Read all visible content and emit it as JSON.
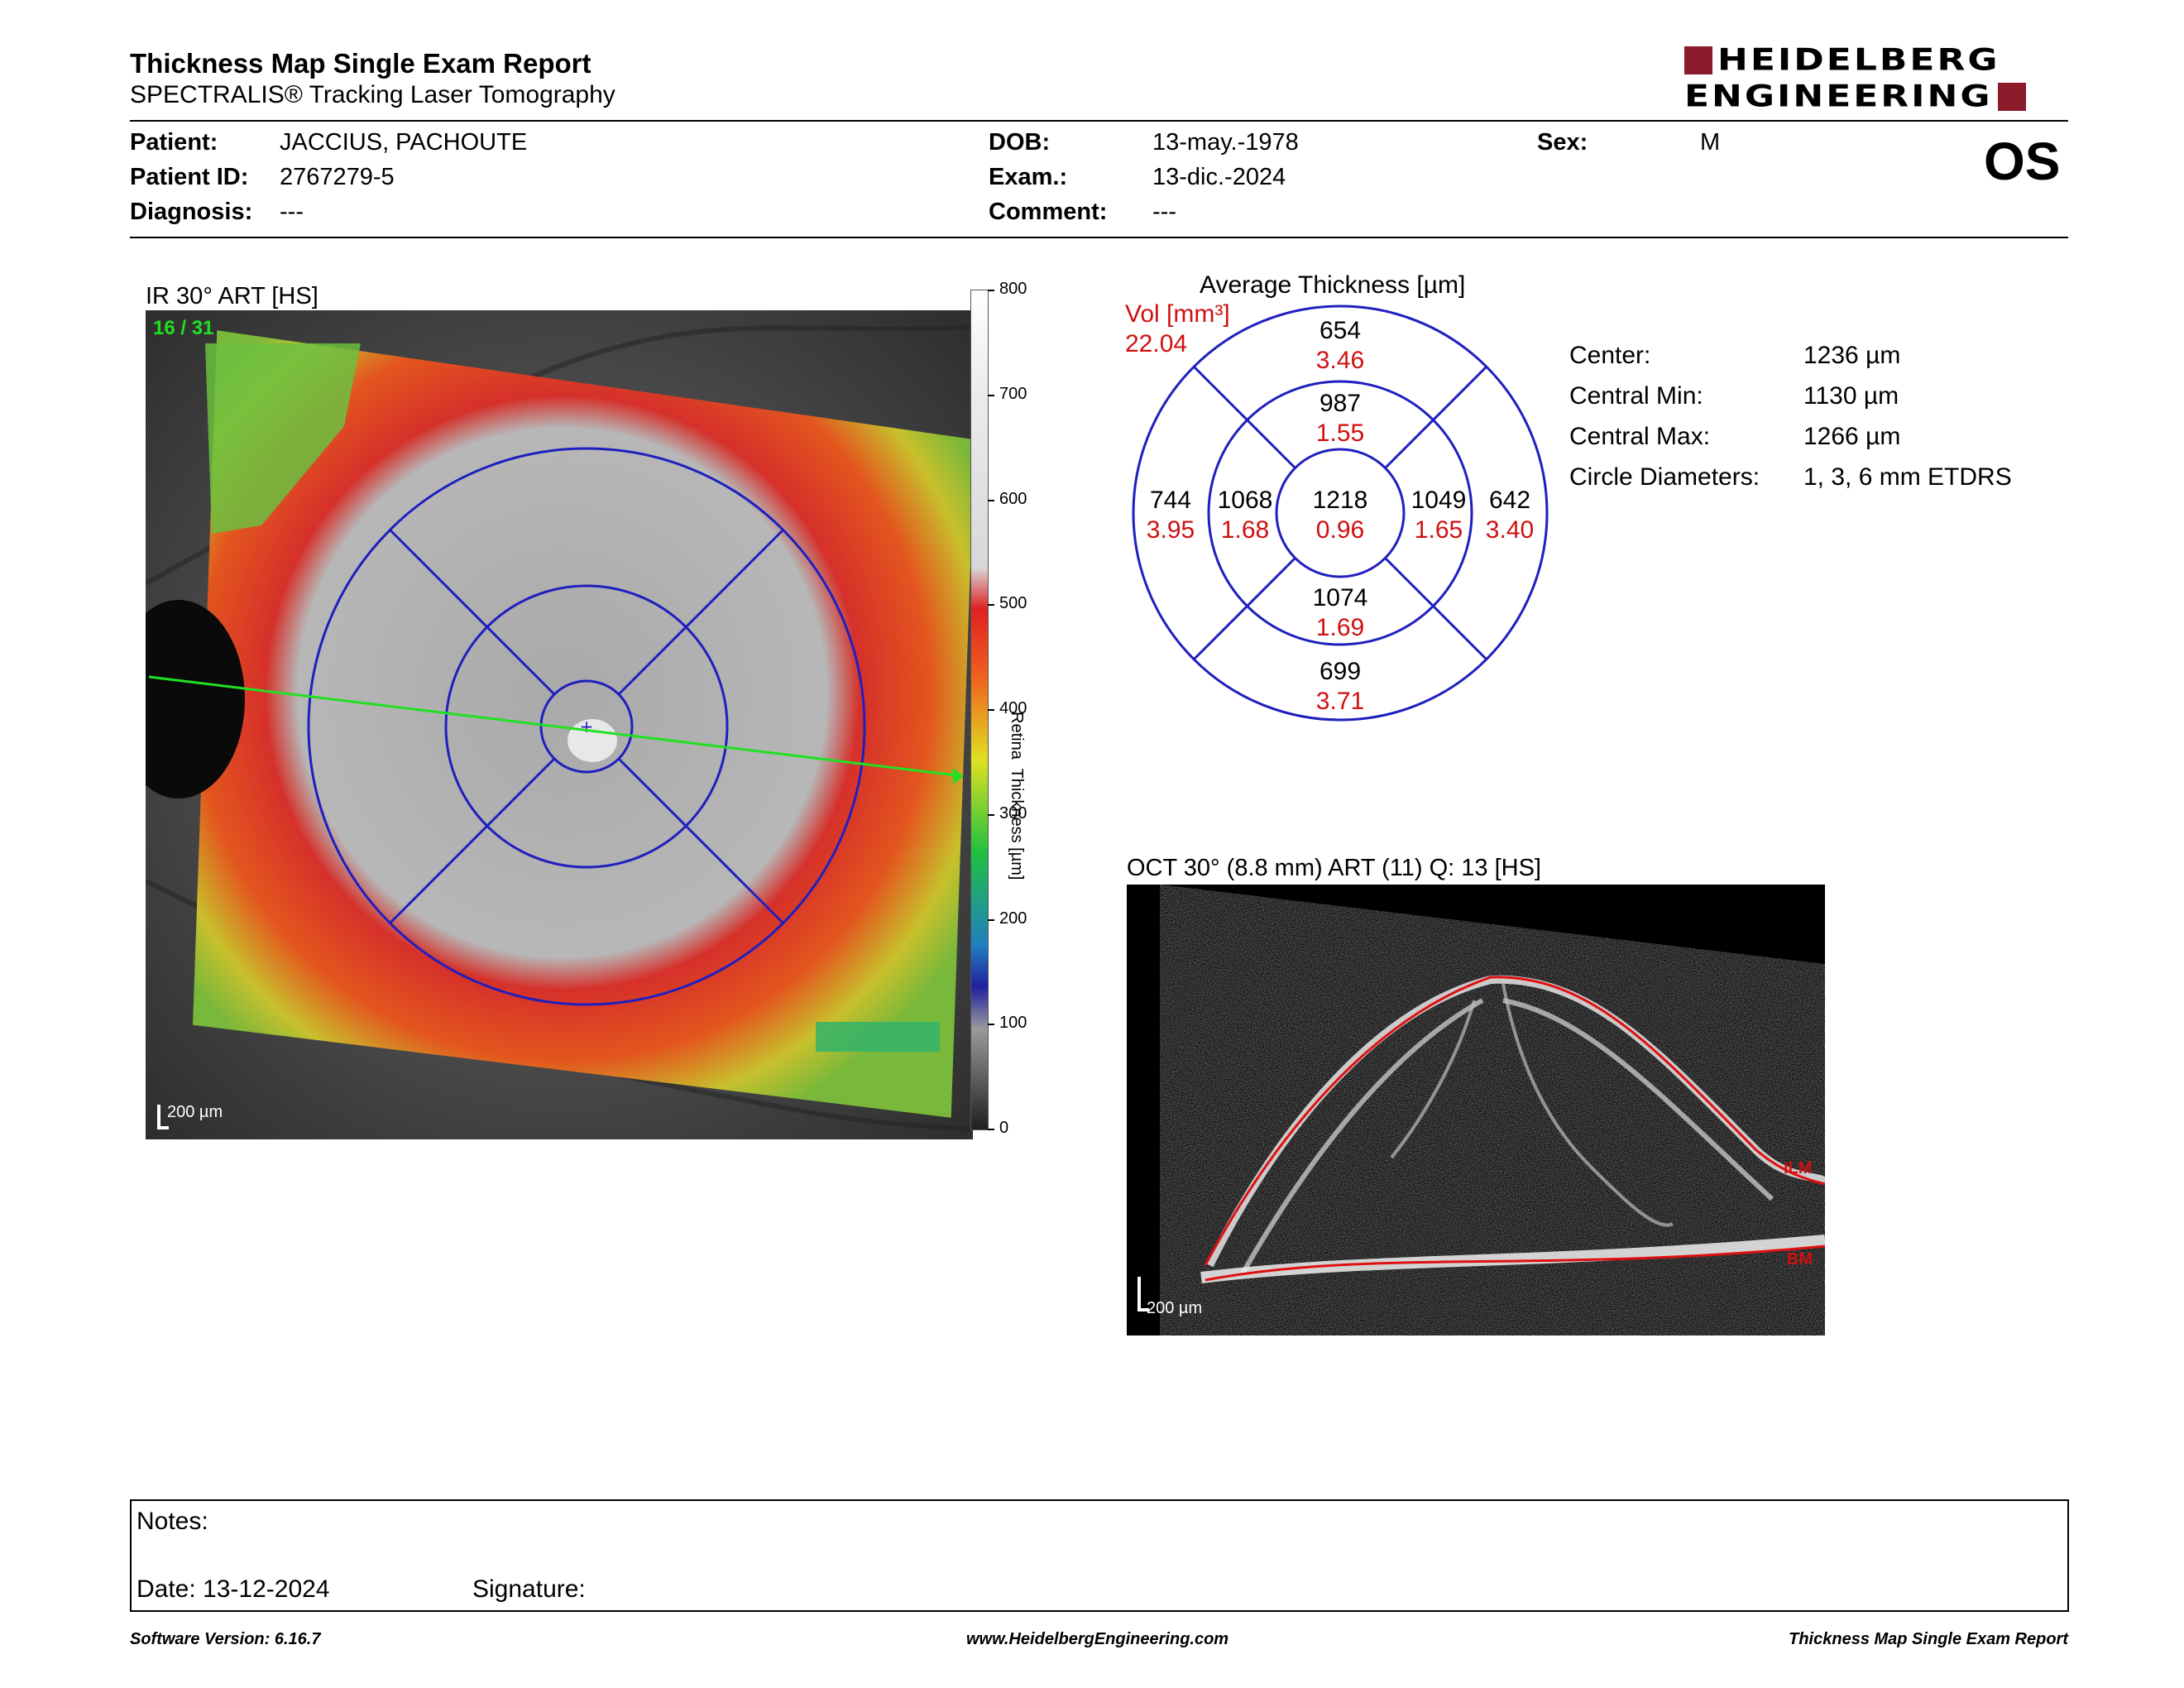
{
  "header": {
    "title": "Thickness Map Single Exam Report",
    "subtitle": "SPECTRALIS® Tracking Laser Tomography",
    "logo_line1": "HEIDELBERG",
    "logo_line2": "ENGINEERING",
    "eye": "OS"
  },
  "patient": {
    "patient_label": "Patient:",
    "patient_value": "JACCIUS, PACHOUTE",
    "id_label": "Patient ID:",
    "id_value": "2767279-5",
    "diagnosis_label": "Diagnosis:",
    "diagnosis_value": "---",
    "dob_label": "DOB:",
    "dob_value": "13-may.-1978",
    "exam_label": "Exam.:",
    "exam_value": "13-dic.-2024",
    "comment_label": "Comment:",
    "comment_value": "---",
    "sex_label": "Sex:",
    "sex_value": "M"
  },
  "ir_panel": {
    "title": "IR 30° ART [HS]",
    "frame_label": "16 / 31",
    "scale_bar": "200 µm",
    "colorbar_ticks": [
      "800",
      "700",
      "600",
      "500",
      "400",
      "300",
      "200",
      "100",
      "0"
    ],
    "colorbar_title": "Retina  Thickness [µm]"
  },
  "etdrs": {
    "title": "Average Thickness [µm]",
    "vol_label": "Vol [mm³]",
    "vol_value": "22.04",
    "center": {
      "thickness": "1218",
      "volume": "0.96"
    },
    "inner_superior": {
      "thickness": "987",
      "volume": "1.55"
    },
    "inner_inferior": {
      "thickness": "1074",
      "volume": "1.69"
    },
    "inner_temporal": {
      "thickness": "1068",
      "volume": "1.68"
    },
    "inner_nasal": {
      "thickness": "1049",
      "volume": "1.65"
    },
    "outer_superior": {
      "thickness": "654",
      "volume": "3.46"
    },
    "outer_inferior": {
      "thickness": "699",
      "volume": "3.71"
    },
    "outer_temporal": {
      "thickness": "744",
      "volume": "3.95"
    },
    "outer_nasal": {
      "thickness": "642",
      "volume": "3.40"
    }
  },
  "stats": {
    "center_label": "Center:",
    "center_value": "1236 µm",
    "min_label": "Central Min:",
    "min_value": "1130 µm",
    "max_label": "Central Max:",
    "max_value": "1266 µm",
    "circle_label": "Circle Diameters:",
    "circle_value": "1, 3, 6 mm ETDRS"
  },
  "oct_panel": {
    "title": "OCT 30° (8.8 mm) ART (11) Q: 13 [HS]",
    "scale_bar": "200 µm",
    "ilm_label": "ILM",
    "bm_label": "BM"
  },
  "notes": {
    "notes_label": "Notes:",
    "date_label": "Date: 13-12-2024",
    "signature_label": "Signature:"
  },
  "footer": {
    "software": "Software Version: 6.16.7",
    "website": "www.HeidelbergEngineering.com",
    "report_name": "Thickness Map Single Exam Report"
  },
  "colors": {
    "brand": "#8b1a2b",
    "grid": "#1f1fbf",
    "volume": "#d01010",
    "scan_line": "#22e022"
  }
}
